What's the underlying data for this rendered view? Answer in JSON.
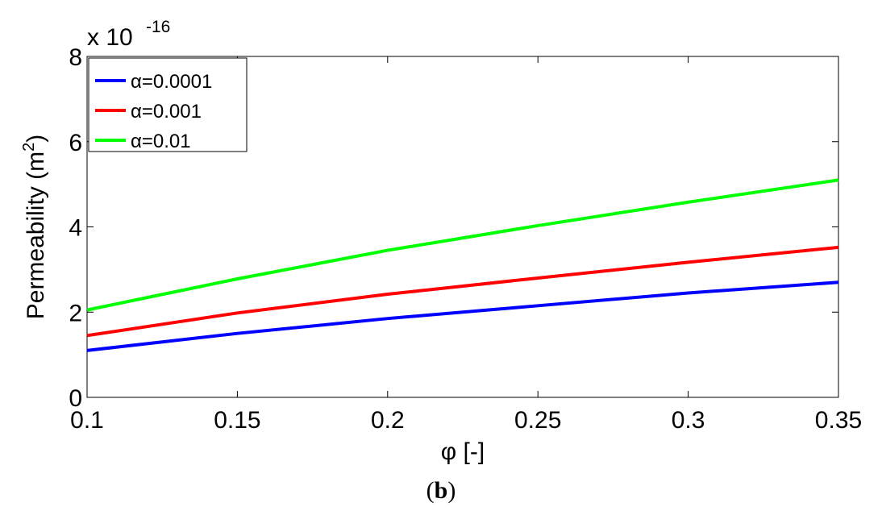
{
  "chart_data": {
    "type": "line",
    "xlabel": "φ [-]",
    "ylabel_main": "Permeability (m",
    "ylabel_sup": "2",
    "ylabel_close": ")",
    "exponent_base": "x 10",
    "exponent_power": "-16",
    "xlim": [
      0.1,
      0.35
    ],
    "ylim": [
      0,
      8
    ],
    "x_ticks": [
      "0.1",
      "0.15",
      "0.2",
      "0.25",
      "0.3",
      "0.35"
    ],
    "y_ticks": [
      "0",
      "2",
      "4",
      "6",
      "8"
    ],
    "grid": false,
    "legend_position": "top-left",
    "series": [
      {
        "name": "α=0.0001",
        "color": "#0000ff",
        "x": [
          0.1,
          0.15,
          0.2,
          0.25,
          0.3,
          0.35
        ],
        "y": [
          1.1,
          1.5,
          1.85,
          2.15,
          2.45,
          2.7
        ]
      },
      {
        "name": "α=0.001",
        "color": "#ff0000",
        "x": [
          0.1,
          0.15,
          0.2,
          0.25,
          0.3,
          0.35
        ],
        "y": [
          1.45,
          1.98,
          2.42,
          2.8,
          3.17,
          3.52
        ]
      },
      {
        "name": "α=0.01",
        "color": "#00ff00",
        "x": [
          0.1,
          0.15,
          0.2,
          0.25,
          0.3,
          0.35
        ],
        "y": [
          2.05,
          2.78,
          3.45,
          4.03,
          4.58,
          5.1
        ]
      }
    ]
  },
  "caption": {
    "open": "(",
    "letter": "b",
    "close": ")"
  }
}
